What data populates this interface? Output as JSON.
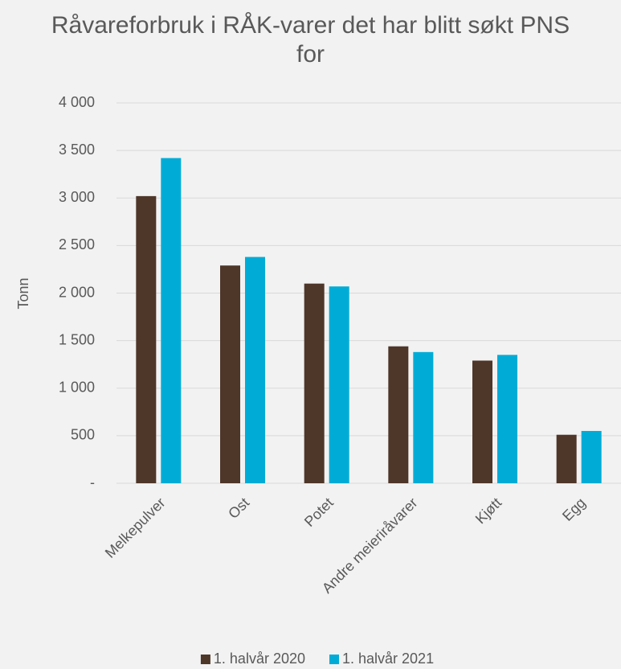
{
  "chart_data": {
    "type": "bar",
    "title": "Råvareforbruk i RÅK-varer det har blitt søkt PNS for",
    "y_label": "Tonn",
    "categories": [
      "Melkepulver",
      "Ost",
      "Potet",
      "Andre meieriråvarer",
      "Kjøtt",
      "Egg"
    ],
    "series": [
      {
        "name": "1. halvår 2020",
        "color": "#4e3629",
        "values": [
          3020,
          2290,
          2100,
          1440,
          1290,
          510
        ]
      },
      {
        "name": "1. halvår 2021",
        "color": "#00acd6",
        "values": [
          3420,
          2380,
          2070,
          1380,
          1350,
          550
        ]
      }
    ],
    "ylim": [
      0,
      4000
    ],
    "yticks": [
      {
        "value": 0,
        "label": "-"
      },
      500,
      {
        "value": 1000,
        "label": "1 000"
      },
      {
        "value": 1500,
        "label": "1 500"
      },
      {
        "value": 2000,
        "label": "2 000"
      },
      {
        "value": 2500,
        "label": "2 500"
      },
      {
        "value": 3000,
        "label": "3 000"
      },
      {
        "value": 3500,
        "label": "3 500"
      },
      {
        "value": 4000,
        "label": "4 000"
      }
    ],
    "grid": true,
    "legend": "bottom"
  }
}
